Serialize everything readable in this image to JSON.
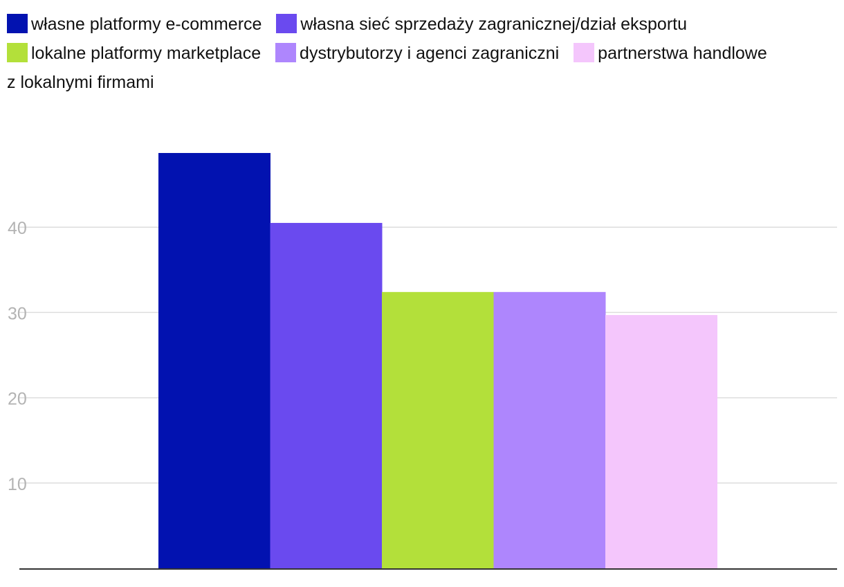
{
  "chart_data": {
    "type": "bar",
    "title": "",
    "xlabel": "",
    "ylabel": "",
    "ylim": [
      0,
      49
    ],
    "y_ticks": [
      10,
      20,
      30,
      40
    ],
    "grid": true,
    "legend_position": "top",
    "series": [
      {
        "name": "własne platformy e-commerce",
        "value": 48.7,
        "color": "#0212b0"
      },
      {
        "name": "własna sieć sprzedaży zagranicznej/dział eksportu",
        "value": 40.5,
        "color": "#6a4aef"
      },
      {
        "name": "lokalne platformy marketplace",
        "value": 32.4,
        "color": "#b3e03a"
      },
      {
        "name": "dystrybutorzy i agenci zagraniczni",
        "value": 32.4,
        "color": "#ae86fd"
      },
      {
        "name": "partnerstwa handlowe z lokalnymi firmami",
        "value": 29.7,
        "color": "#f4c6fc"
      }
    ]
  }
}
